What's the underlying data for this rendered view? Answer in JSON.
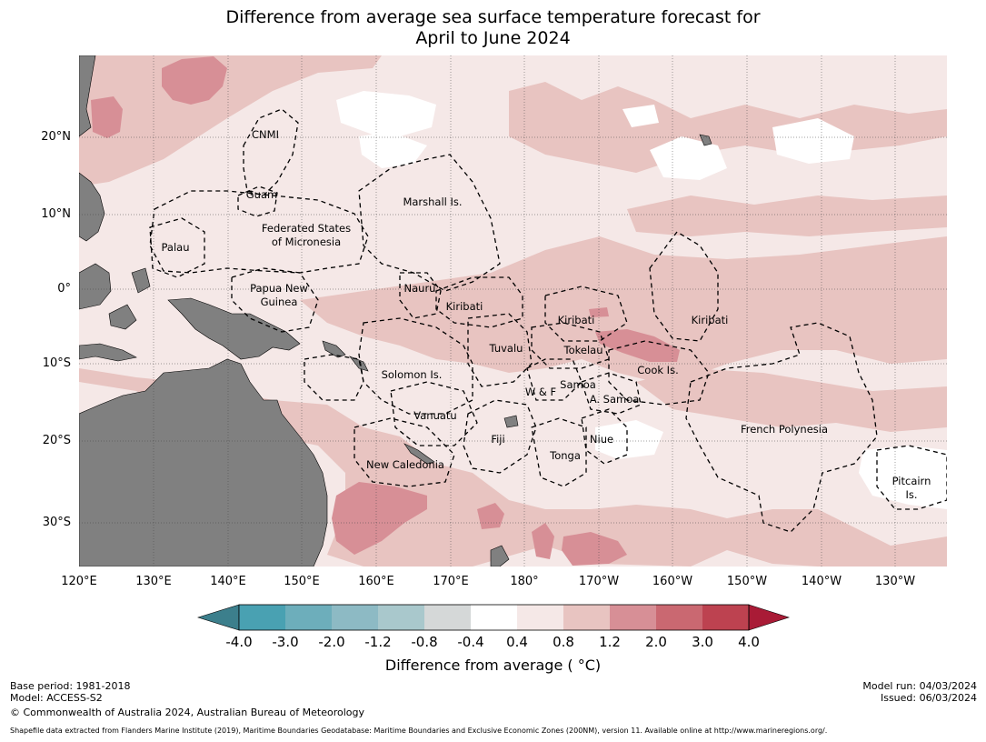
{
  "title": {
    "line1": "Difference from average sea surface temperature forecast for",
    "line2": "April to June 2024"
  },
  "axes": {
    "latitude_labels": [
      "20°N",
      "10°N",
      "0°",
      "10°S",
      "20°S",
      "30°S"
    ],
    "longitude_labels": [
      "120°E",
      "130°E",
      "140°E",
      "150°E",
      "160°E",
      "170°E",
      "180°",
      "170°W",
      "160°W",
      "150°W",
      "140°W",
      "130°W"
    ]
  },
  "regions": {
    "cnmi": "CNMI",
    "guam": "Guam",
    "marshall": "Marshall Is.",
    "fsm_1": "Federated States",
    "fsm_2": "of Micronesia",
    "palau": "Palau",
    "png_1": "Papua New",
    "png_2": "Guinea",
    "nauru": "Nauru",
    "kiribati_west": "Kiribati",
    "kiribati_central": "Kiribati",
    "kiribati_east": "Kiribati",
    "tuvalu": "Tuvalu",
    "tokelau": "Tokelau",
    "cook": "Cook Is.",
    "solomon": "Solomon Is.",
    "samoa": "Samoa",
    "wf": "W & F",
    "asamoa": "A. Samoa",
    "vanuatu": "Vanuatu",
    "fiji": "Fiji",
    "niue": "Niue",
    "tonga": "Tonga",
    "french_polynesia": "French Polynesia",
    "new_caledonia": "New Caledonia",
    "pitcairn_1": "Pitcairn",
    "pitcairn_2": "Is."
  },
  "colorbar": {
    "title": "Difference from average ( °C)",
    "tick_labels": [
      "-4.0",
      "-3.0",
      "-2.0",
      "-1.2",
      "-0.8",
      "-0.4",
      "0.4",
      "0.8",
      "1.2",
      "2.0",
      "3.0",
      "4.0"
    ],
    "colors": {
      "below_min": "#3c7f8c",
      "bin_1": "#49a1b2",
      "bin_2": "#6daebb",
      "bin_3": "#8dbac4",
      "bin_4": "#a9c8cc",
      "bin_5": "#d5d8d8",
      "bin_6": "#ffffff",
      "bin_7": "#f5e8e7",
      "bin_8": "#e8c4c1",
      "bin_9": "#d78f96",
      "bin_10": "#ca6871",
      "bin_11": "#bd4250",
      "above_max": "#a91b36"
    }
  },
  "footer": {
    "base_period": "Base period: 1981-2018",
    "model": "Model: ACCESS-S2",
    "copyright": "© Commonwealth of Australia 2024, Australian Bureau of Meteorology",
    "model_run": "Model run: 04/03/2024",
    "issued": "Issued: 06/03/2024",
    "shapefile": "Shapefile data extracted from Flanders Marine Institute (2019), Maritime Boundaries Geodatabase: Maritime Boundaries and Exclusive Economic Zones (200NM), version 11. Available online at http://www.marineregions.org/."
  },
  "map_colors": {
    "land": "#808080",
    "ocean_light": "#f5e8e7",
    "ocean_mid": "#e8c4c1",
    "ocean_warm": "#d78f96",
    "ocean_neutral": "#ffffff"
  }
}
